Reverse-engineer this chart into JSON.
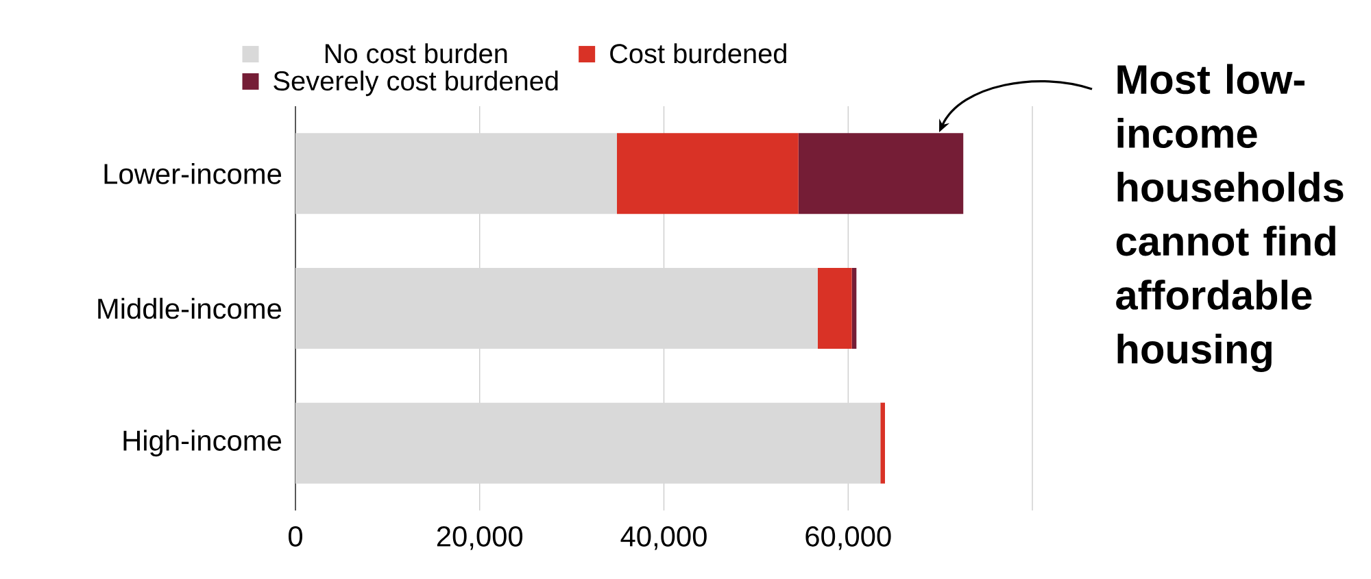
{
  "chart_data": {
    "type": "bar",
    "orientation": "horizontal",
    "stacked": true,
    "categories": [
      "Lower-income",
      "Middle-income",
      "High-income"
    ],
    "series": [
      {
        "name": "No cost burden",
        "color": "#d9d9d9",
        "values": [
          34900,
          56700,
          63500
        ]
      },
      {
        "name": "Cost burdened",
        "color": "#d93226",
        "values": [
          19700,
          3700,
          500
        ]
      },
      {
        "name": "Severely cost burdened",
        "color": "#751d36",
        "values": [
          17900,
          500,
          0
        ]
      }
    ],
    "xlim": [
      0,
      80000
    ],
    "xticks": [
      0,
      {
        "value": 20000,
        "label": "20,000"
      },
      {
        "value": 40000,
        "label": "40,000"
      },
      {
        "value": 60000,
        "label": "60,000"
      },
      {
        "value": 80000,
        "label": null
      }
    ],
    "grid": "x",
    "legend": "top",
    "annotations": [
      "Most low-income households cannot find affordable housing"
    ]
  }
}
